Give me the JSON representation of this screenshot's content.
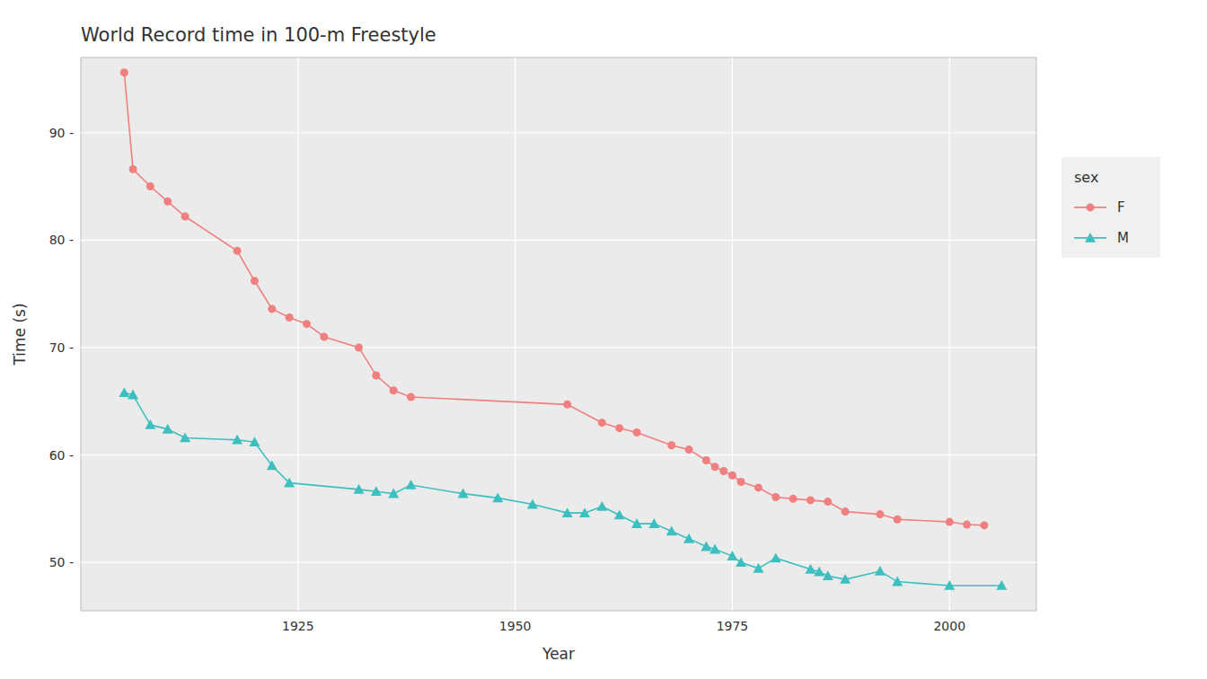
{
  "chart_data": {
    "type": "line",
    "title": "World Record time in 100-m Freestyle",
    "x_label": "Year",
    "y_label": "Time (s)",
    "xlim": [
      1900,
      2010
    ],
    "ylim": [
      45.5,
      97
    ],
    "xticks": [
      1925,
      1950,
      1975,
      2000
    ],
    "yticks": [
      {
        "value": 50,
        "label": "50 -"
      },
      {
        "value": 60,
        "label": "60 -"
      },
      {
        "value": 70,
        "label": "70 -"
      },
      {
        "value": 80,
        "label": "80 -"
      },
      {
        "value": 90,
        "label": "90 -"
      }
    ],
    "grid": true,
    "legend": "right",
    "legend_title": "sex",
    "series": [
      {
        "name": "F",
        "color": "#F08080",
        "marker": "circle",
        "x": [
          1905,
          1906,
          1908,
          1910,
          1912,
          1918,
          1920,
          1922,
          1924,
          1926,
          1928,
          1932,
          1934,
          1936,
          1938,
          1956,
          1960,
          1962,
          1964,
          1968,
          1970,
          1972,
          1973,
          1974,
          1975,
          1976,
          1978,
          1980,
          1982,
          1984,
          1986,
          1988,
          1992,
          1994,
          2000,
          2002,
          2004
        ],
        "values": [
          95.6,
          86.6,
          85.0,
          83.6,
          82.2,
          79.0,
          76.2,
          73.6,
          72.8,
          72.2,
          71.0,
          70.0,
          67.4,
          66.0,
          65.4,
          64.7,
          63.0,
          62.5,
          62.1,
          60.9,
          60.5,
          59.5,
          58.9,
          58.5,
          58.1,
          57.5,
          56.96,
          56.08,
          55.92,
          55.79,
          55.65,
          54.73,
          54.48,
          54.01,
          53.77,
          53.52,
          53.45
        ]
      },
      {
        "name": "M",
        "color": "#3DBFBF",
        "marker": "triangle",
        "x": [
          1905,
          1906,
          1908,
          1910,
          1912,
          1918,
          1920,
          1922,
          1924,
          1932,
          1934,
          1936,
          1938,
          1944,
          1948,
          1952,
          1956,
          1958,
          1960,
          1962,
          1964,
          1966,
          1968,
          1970,
          1972,
          1973,
          1975,
          1976,
          1978,
          1980,
          1984,
          1985,
          1986,
          1988,
          1992,
          1994,
          2000,
          2006
        ],
        "values": [
          65.8,
          65.6,
          62.8,
          62.4,
          61.6,
          61.4,
          61.2,
          59.0,
          57.4,
          56.8,
          56.6,
          56.4,
          57.2,
          56.4,
          56.0,
          55.4,
          54.6,
          54.6,
          55.2,
          54.4,
          53.6,
          53.6,
          52.9,
          52.2,
          51.47,
          51.22,
          50.59,
          49.99,
          49.44,
          50.4,
          49.36,
          49.12,
          48.74,
          48.42,
          49.18,
          48.21,
          47.84,
          47.84
        ]
      }
    ]
  }
}
